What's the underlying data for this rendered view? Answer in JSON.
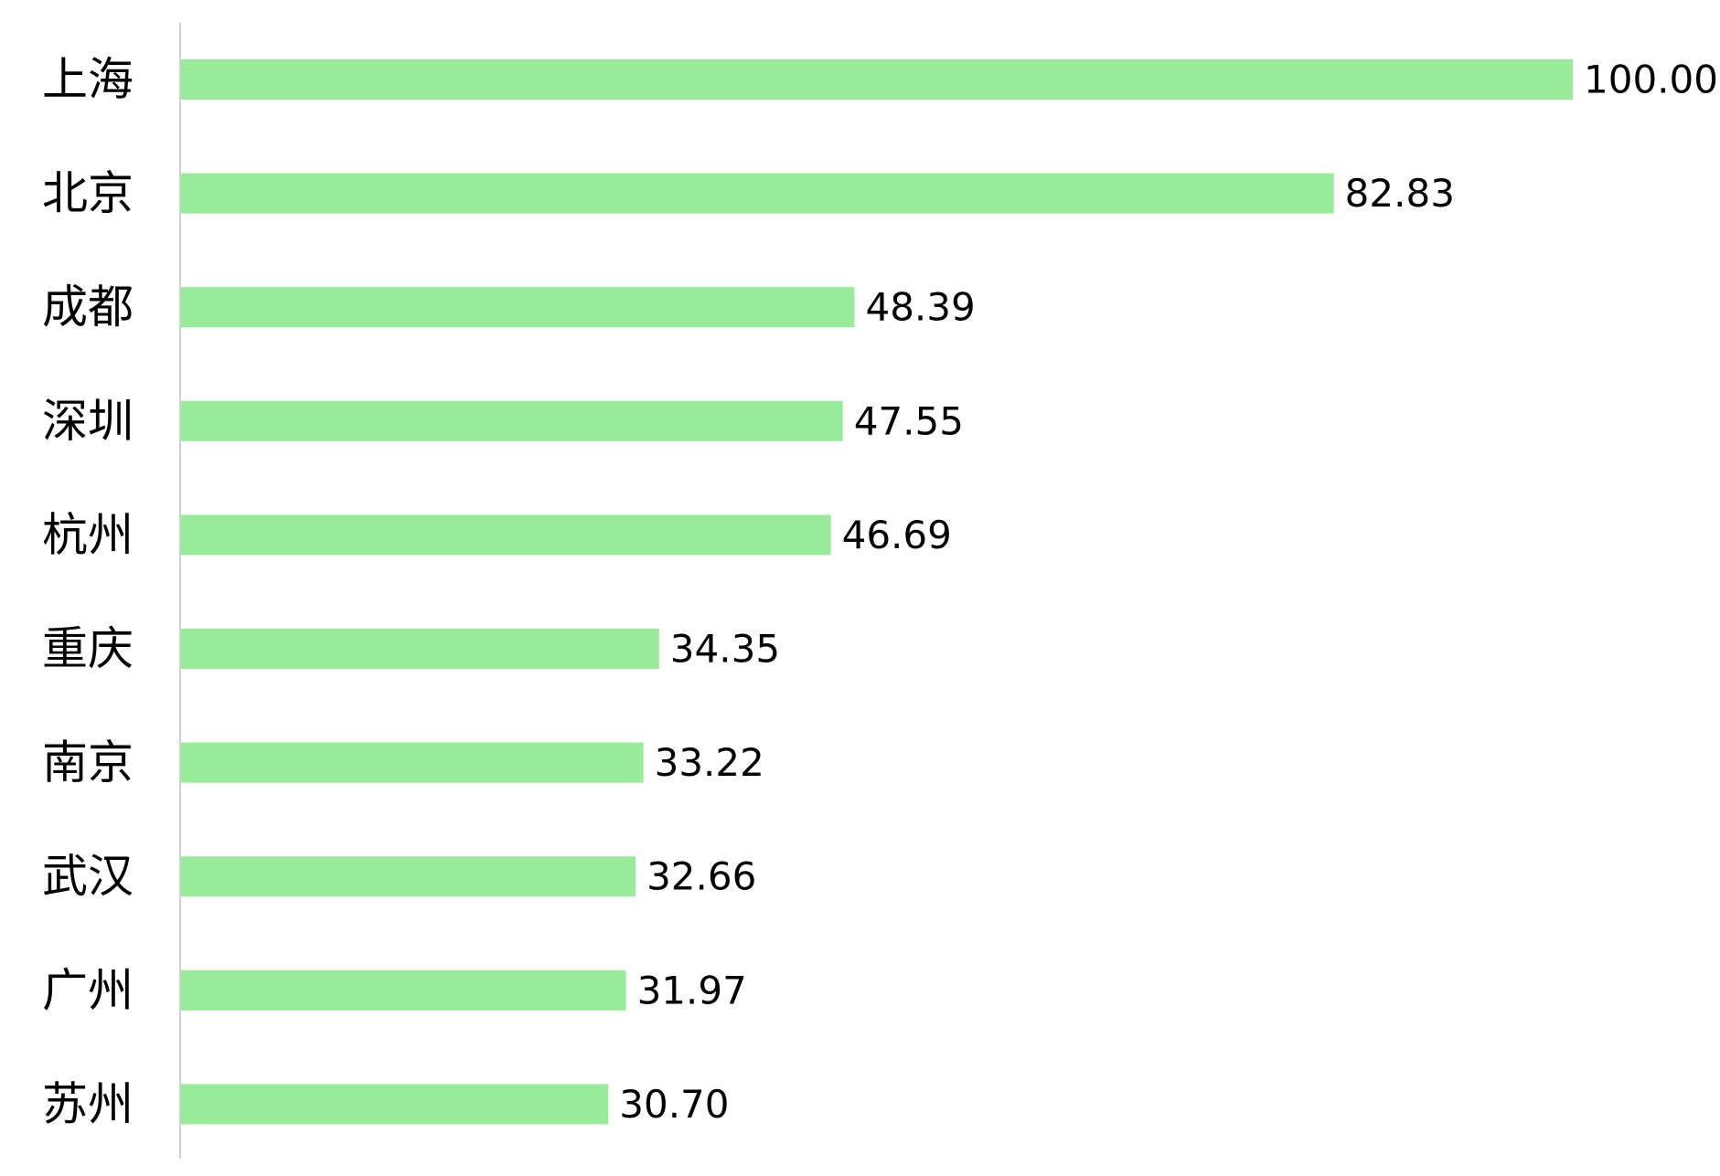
{
  "chart_data": {
    "type": "bar",
    "orientation": "horizontal",
    "title": "",
    "xlabel": "",
    "ylabel": "",
    "grid": false,
    "xlim": [
      0,
      100
    ],
    "bar_color": "#98eb98",
    "axis_color": "#d0d0d0",
    "categories": [
      "上海",
      "北京",
      "成都",
      "深圳",
      "杭州",
      "重庆",
      "南京",
      "武汉",
      "广州",
      "苏州"
    ],
    "values": [
      100.0,
      82.83,
      48.39,
      47.55,
      46.69,
      34.35,
      33.22,
      32.66,
      31.97,
      30.7
    ],
    "value_labels": [
      "100.00",
      "82.83",
      "48.39",
      "47.55",
      "46.69",
      "34.35",
      "33.22",
      "32.66",
      "31.97",
      "30.70"
    ]
  }
}
